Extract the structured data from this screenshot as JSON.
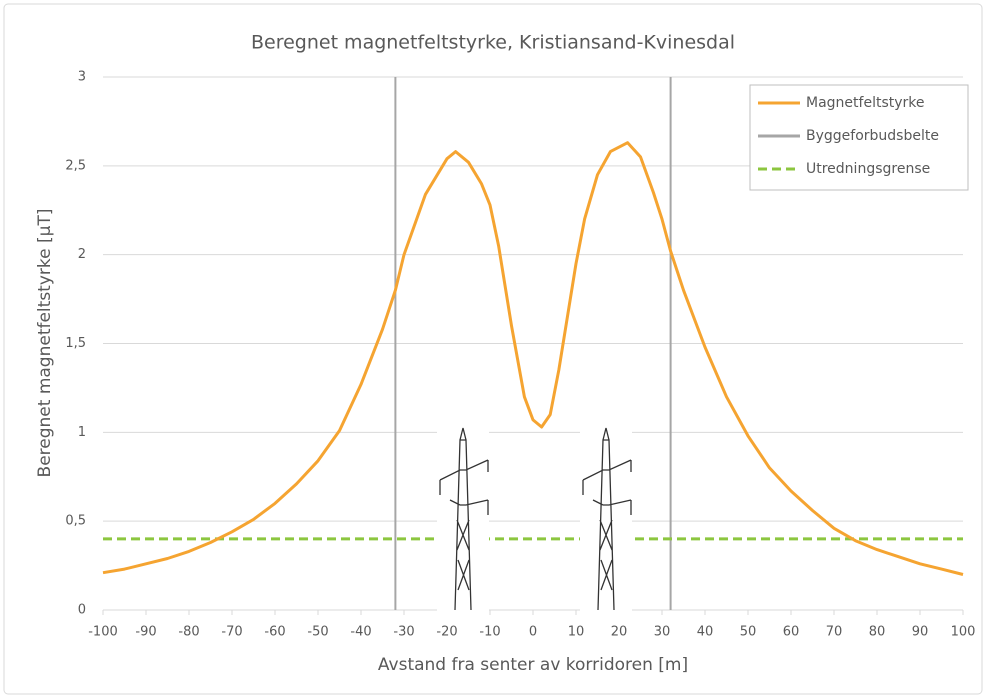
{
  "chart_data": {
    "type": "line",
    "title": "Beregnet magnetfeltstyrke, Kristiansand-Kvinesdal",
    "x_label": "Avstand fra senter av korridoren [m]",
    "y_label": "Beregnet magnetfeltstyrke [µT]",
    "xlim": [
      -100,
      100
    ],
    "xticks": [
      -100,
      -90,
      -80,
      -70,
      -60,
      -50,
      -40,
      -30,
      -20,
      -10,
      0,
      10,
      20,
      30,
      40,
      50,
      60,
      70,
      80,
      90,
      100
    ],
    "ylim": [
      0,
      3
    ],
    "yticks": [
      0,
      {
        "value": 0.5,
        "label": "0,5"
      },
      1,
      {
        "value": 1.5,
        "label": "1,5"
      },
      2,
      {
        "value": 2.5,
        "label": "2,5"
      },
      3
    ],
    "grid": true,
    "legend": "top-right",
    "series": [
      {
        "name": "Magnetfeltstyrke",
        "color": "#f5a431",
        "x": [
          -100,
          -95,
          -90,
          -85,
          -80,
          -75,
          -70,
          -65,
          -60,
          -55,
          -50,
          -45,
          -40,
          -35,
          -32,
          -30,
          -25,
          -20,
          -18,
          -15,
          -12,
          -10,
          -8,
          -5,
          -2,
          0,
          2,
          4,
          6,
          8,
          10,
          12,
          15,
          18,
          22,
          25,
          28,
          30,
          32,
          35,
          40,
          45,
          50,
          55,
          60,
          65,
          70,
          75,
          80,
          85,
          90,
          95,
          100
        ],
        "values": [
          0.21,
          0.23,
          0.26,
          0.29,
          0.33,
          0.38,
          0.44,
          0.51,
          0.6,
          0.71,
          0.84,
          1.01,
          1.27,
          1.58,
          1.8,
          2.0,
          2.34,
          2.54,
          2.58,
          2.52,
          2.4,
          2.28,
          2.05,
          1.6,
          1.2,
          1.07,
          1.03,
          1.1,
          1.35,
          1.65,
          1.95,
          2.2,
          2.45,
          2.58,
          2.63,
          2.55,
          2.35,
          2.2,
          2.02,
          1.8,
          1.48,
          1.2,
          0.98,
          0.8,
          0.67,
          0.56,
          0.46,
          0.39,
          0.34,
          0.3,
          0.26,
          0.23,
          0.2
        ]
      }
    ],
    "reference_lines": [
      {
        "name": "Byggeforbudsbelte",
        "color": "#a6a6a6",
        "orientation": "vertical",
        "x": [
          -32,
          32
        ]
      },
      {
        "name": "Utredningsgrense",
        "color": "#8cc63f",
        "orientation": "horizontal",
        "y": 0.4,
        "dashed": true
      }
    ]
  }
}
